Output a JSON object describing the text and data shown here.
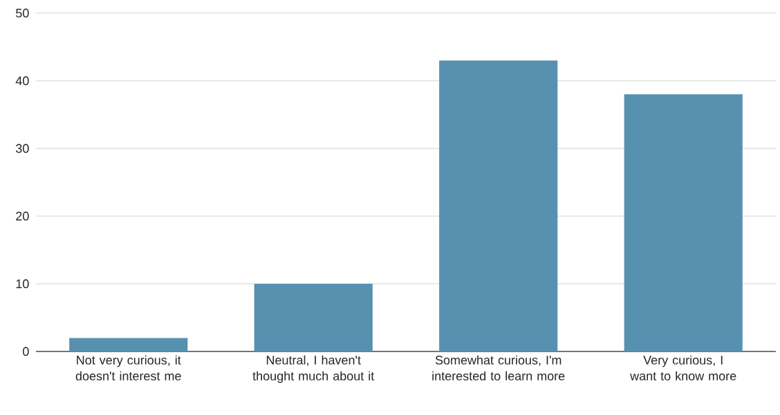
{
  "chart_data": {
    "type": "bar",
    "categories": [
      "Not very curious, it doesn't interest me",
      "Neutral, I haven't thought much about it",
      "Somewhat curious, I'm interested to learn more",
      "Very curious, I want to know more"
    ],
    "values": [
      2,
      10,
      43,
      38
    ],
    "color": "#5891b0",
    "ylim": [
      0,
      50
    ],
    "yticks": [
      0,
      10,
      20,
      30,
      40,
      50
    ],
    "grid": "y"
  }
}
